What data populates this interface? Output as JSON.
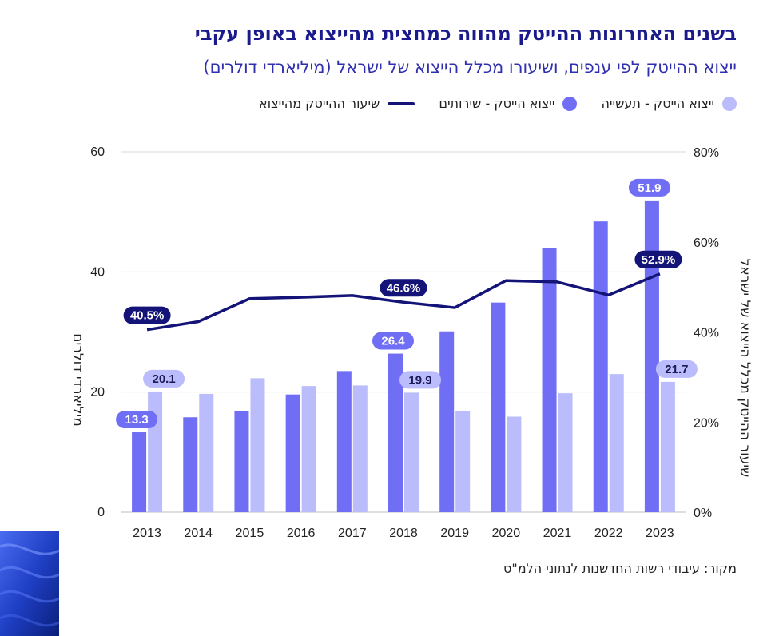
{
  "header": {
    "title": "בשנים האחרונות ההייטק מהווה כמחצית מהייצוא באופן עקבי",
    "subtitle": "ייצוא ההייטק לפי ענפים, ושיעורו מכלל הייצוא של ישראל (מיליארדי דולרים)"
  },
  "footer": {
    "source": "מקור: עיבודי רשות החדשנות לנתוני הלמ\"ס"
  },
  "colors": {
    "industry": "#bbbcfb",
    "services": "#6f6ef4",
    "line": "#141478",
    "grid": "#d9d9d9",
    "title": "#1a1a8c",
    "subtitle": "#2f2fb0"
  },
  "chart_data": {
    "type": "bar",
    "title": "בשנים האחרונות ההייטק מהווה כמחצית מהייצוא באופן עקבי",
    "subtitle": "ייצוא ההייטק לפי ענפים, ושיעורו מכלל הייצוא של ישראל (מיליארדי דולרים)",
    "ylabel": "מיליארדי דולרים",
    "y2label": "שיעור ההייטק מכלל הייצוא של ישראל",
    "categories": [
      "2013",
      "2014",
      "2015",
      "2016",
      "2017",
      "2018",
      "2019",
      "2020",
      "2021",
      "2022",
      "2023"
    ],
    "ylim": [
      0,
      60
    ],
    "yticks": [
      "0",
      "20",
      "40",
      "60"
    ],
    "y2lim": [
      0,
      80
    ],
    "y2ticks": [
      "0%",
      "20%",
      "40%",
      "60%",
      "80%"
    ],
    "grid": true,
    "legend_position": "top",
    "series": [
      {
        "name": "ייצוא הייטק - שירותים",
        "kind": "bar",
        "values": [
          13.3,
          15.8,
          16.9,
          19.6,
          23.5,
          26.4,
          30.1,
          34.9,
          43.9,
          48.4,
          51.9
        ],
        "labels": [
          "13.3",
          "",
          "",
          "",
          "",
          "26.4",
          "",
          "",
          "",
          "",
          "51.9"
        ]
      },
      {
        "name": "ייצוא הייטק - תעשייה",
        "kind": "bar",
        "values": [
          20.1,
          19.7,
          22.3,
          21.0,
          21.1,
          19.9,
          16.8,
          15.9,
          19.8,
          23.0,
          21.7
        ],
        "labels": [
          "20.1",
          "",
          "",
          "",
          "",
          "19.9",
          "",
          "",
          "",
          "",
          "21.7"
        ]
      },
      {
        "name": "שיעור ההייטק מהייצוא",
        "kind": "line",
        "axis": "right",
        "values": [
          40.5,
          42.3,
          47.4,
          47.7,
          48.1,
          46.6,
          45.4,
          51.4,
          51.1,
          48.2,
          52.9
        ],
        "labels": [
          "40.5%",
          "",
          "",
          "",
          "",
          "46.6%",
          "",
          "",
          "",
          "",
          "52.9%"
        ]
      }
    ]
  }
}
